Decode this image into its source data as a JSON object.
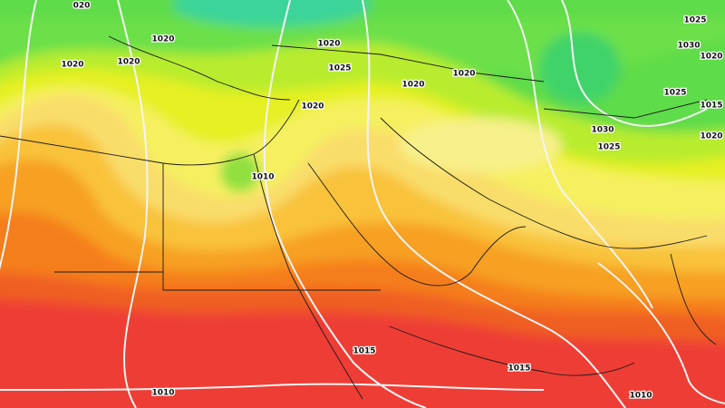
{
  "isobar_labels": [
    "020",
    "1020",
    "1020",
    "1020",
    "1020",
    "1025",
    "1020",
    "1020",
    "1025",
    "1030",
    "1020",
    "1025",
    "1015",
    "1030",
    "1025",
    "1020",
    "1020",
    "1010",
    "1015",
    "1015",
    "1010",
    "1010"
  ]
}
